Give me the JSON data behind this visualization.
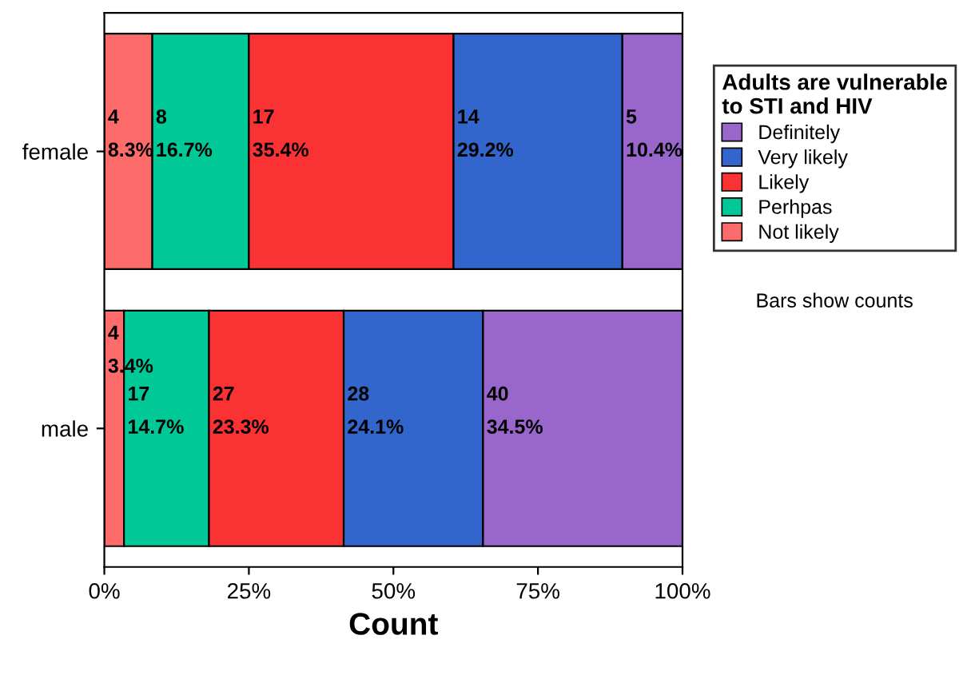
{
  "chart_data": {
    "type": "bar",
    "orientation": "horizontal",
    "stacked": true,
    "categories": [
      "female",
      "male"
    ],
    "xlabel": "Count",
    "xlim": [
      0,
      100
    ],
    "xticks": [
      {
        "value": 0,
        "label": "0%"
      },
      {
        "value": 25,
        "label": "25%"
      },
      {
        "value": 50,
        "label": "50%"
      },
      {
        "value": 75,
        "label": "75%"
      },
      {
        "value": 100,
        "label": "100%"
      }
    ],
    "legend_title": "Adults are vulnerable\nto STI and HIV",
    "legend": "right",
    "grid": false,
    "series": [
      {
        "name": "Not likely",
        "color": "#fd6b6b",
        "values": [
          8.3,
          3.4
        ],
        "value_labels": [
          "4\n8.3%",
          "4\n3.4%"
        ]
      },
      {
        "name": "Perhpas",
        "color": "#00c896",
        "values": [
          16.7,
          14.7
        ],
        "value_labels": [
          "8\n16.7%",
          "17\n14.7%"
        ]
      },
      {
        "name": "Likely",
        "color": "#fb3234",
        "values": [
          35.4,
          23.3
        ],
        "value_labels": [
          "17\n35.4%",
          "27\n23.3%"
        ]
      },
      {
        "name": "Very likely",
        "color": "#3366cc",
        "values": [
          29.2,
          24.1
        ],
        "value_labels": [
          "14\n29.2%",
          "28\n24.1%"
        ]
      },
      {
        "name": "Definitely",
        "color": "#9966cc",
        "values": [
          10.4,
          34.5
        ],
        "value_labels": [
          "5\n10.4%",
          "40\n34.5%"
        ]
      }
    ],
    "annotations": [
      "Bars show counts"
    ]
  }
}
